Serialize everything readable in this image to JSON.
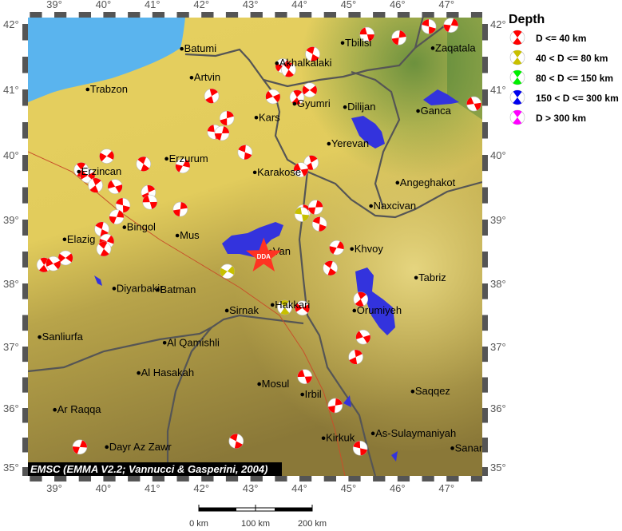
{
  "colors": {
    "sea": "#5ab4ee",
    "lake": "#3333dd",
    "terrain_high": "#e8d46a",
    "terrain_low": "#8f7d3a",
    "epicenter_star": "#ff3322"
  },
  "axes": {
    "lon_ticks": [
      "39°",
      "40°",
      "41°",
      "42°",
      "43°",
      "44°",
      "45°",
      "46°",
      "47°"
    ],
    "lat_ticks": [
      "42°",
      "41°",
      "40°",
      "39°",
      "38°",
      "37°",
      "36°",
      "35°"
    ]
  },
  "legend": {
    "title": "Depth",
    "items": [
      {
        "label": "D <= 40 km",
        "color": "#ff0000"
      },
      {
        "label": "40 < D <= 80 km",
        "color": "#c8c000"
      },
      {
        "label": "80 < D <= 150 km",
        "color": "#00ee00"
      },
      {
        "label": "150 < D <= 300 km",
        "color": "#0000ee"
      },
      {
        "label": "D > 300 km",
        "color": "#ff00ff"
      }
    ]
  },
  "epicenter": {
    "label": "DDA",
    "lon": 43.5,
    "lat": 38.45
  },
  "credit": "EMSC (EMMA V2.2; Vannucci & Gasperini, 2004)",
  "scale_bar": {
    "labels": [
      "0 km",
      "100 km",
      "200 km"
    ]
  },
  "cities": [
    {
      "name": "Batumi",
      "lon": 41.6,
      "lat": 41.62
    },
    {
      "name": "Artvin",
      "lon": 41.8,
      "lat": 41.18
    },
    {
      "name": "Trabzon",
      "lon": 39.68,
      "lat": 41.0
    },
    {
      "name": "Tbilisi",
      "lon": 44.88,
      "lat": 41.71
    },
    {
      "name": "Zaqatala",
      "lon": 46.72,
      "lat": 41.63
    },
    {
      "name": "Akhalkalaki",
      "lon": 43.54,
      "lat": 41.4
    },
    {
      "name": "Gyumri",
      "lon": 43.9,
      "lat": 40.78
    },
    {
      "name": "Dilijan",
      "lon": 44.93,
      "lat": 40.73
    },
    {
      "name": "Ganca",
      "lon": 46.42,
      "lat": 40.67
    },
    {
      "name": "Kars",
      "lon": 43.12,
      "lat": 40.57
    },
    {
      "name": "Yerevan",
      "lon": 44.6,
      "lat": 40.17
    },
    {
      "name": "Erzurum",
      "lon": 41.29,
      "lat": 39.94
    },
    {
      "name": "Karakose",
      "lon": 43.09,
      "lat": 39.73
    },
    {
      "name": "Erzincan",
      "lon": 39.5,
      "lat": 39.74
    },
    {
      "name": "Angeghakot",
      "lon": 46.0,
      "lat": 39.57
    },
    {
      "name": "Naxcivan",
      "lon": 45.46,
      "lat": 39.21
    },
    {
      "name": "Bingol",
      "lon": 40.43,
      "lat": 38.88
    },
    {
      "name": "Mus",
      "lon": 41.51,
      "lat": 38.75
    },
    {
      "name": "Elazig",
      "lon": 39.21,
      "lat": 38.69
    },
    {
      "name": "Van",
      "lon": 43.41,
      "lat": 38.5
    },
    {
      "name": "Khvoy",
      "lon": 45.07,
      "lat": 38.54
    },
    {
      "name": "Tabriz",
      "lon": 46.38,
      "lat": 38.09
    },
    {
      "name": "Diyarbakir",
      "lon": 40.22,
      "lat": 37.92
    },
    {
      "name": "Batman",
      "lon": 41.11,
      "lat": 37.9
    },
    {
      "name": "Sirnak",
      "lon": 42.52,
      "lat": 37.57
    },
    {
      "name": "Hakkari",
      "lon": 43.45,
      "lat": 37.66
    },
    {
      "name": "Orumiyeh",
      "lon": 45.12,
      "lat": 37.57
    },
    {
      "name": "Sanliurfa",
      "lon": 38.7,
      "lat": 37.15
    },
    {
      "name": "Al Qamishli",
      "lon": 41.25,
      "lat": 37.06
    },
    {
      "name": "Al Hasakah",
      "lon": 40.72,
      "lat": 36.57
    },
    {
      "name": "Mosul",
      "lon": 43.18,
      "lat": 36.39
    },
    {
      "name": "Irbil",
      "lon": 44.06,
      "lat": 36.22
    },
    {
      "name": "Saqqez",
      "lon": 46.31,
      "lat": 36.27
    },
    {
      "name": "Ar Raqqa",
      "lon": 39.01,
      "lat": 35.97
    },
    {
      "name": "As-Sulaymaniyah",
      "lon": 45.5,
      "lat": 35.57
    },
    {
      "name": "Kirkuk",
      "lon": 44.49,
      "lat": 35.49
    },
    {
      "name": "Dayr Az Zawr",
      "lon": 40.07,
      "lat": 35.34
    },
    {
      "name": "Sanandaj",
      "lon": 47.12,
      "lat": 35.32
    }
  ],
  "events": [
    {
      "lon": 45.38,
      "lat": 41.84,
      "depth": 1
    },
    {
      "lon": 46.03,
      "lat": 41.79,
      "depth": 1
    },
    {
      "lon": 46.64,
      "lat": 41.96,
      "depth": 1
    },
    {
      "lon": 47.09,
      "lat": 41.98,
      "depth": 1
    },
    {
      "lon": 44.27,
      "lat": 41.54,
      "depth": 1
    },
    {
      "lon": 43.66,
      "lat": 41.36,
      "depth": 1
    },
    {
      "lon": 43.78,
      "lat": 41.3,
      "depth": 1
    },
    {
      "lon": 44.21,
      "lat": 40.99,
      "depth": 1
    },
    {
      "lon": 43.95,
      "lat": 40.88,
      "depth": 1
    },
    {
      "lon": 43.46,
      "lat": 40.89,
      "depth": 1
    },
    {
      "lon": 42.21,
      "lat": 40.9,
      "depth": 1
    },
    {
      "lon": 47.56,
      "lat": 40.78,
      "depth": 1
    },
    {
      "lon": 42.52,
      "lat": 40.56,
      "depth": 1
    },
    {
      "lon": 42.27,
      "lat": 40.35,
      "depth": 1
    },
    {
      "lon": 42.42,
      "lat": 40.33,
      "depth": 1
    },
    {
      "lon": 42.89,
      "lat": 40.04,
      "depth": 1
    },
    {
      "lon": 41.62,
      "lat": 39.83,
      "depth": 1
    },
    {
      "lon": 40.82,
      "lat": 39.86,
      "depth": 1
    },
    {
      "lon": 40.07,
      "lat": 39.98,
      "depth": 1
    },
    {
      "lon": 39.55,
      "lat": 39.77,
      "depth": 1
    },
    {
      "lon": 39.68,
      "lat": 39.68,
      "depth": 1
    },
    {
      "lon": 39.84,
      "lat": 39.53,
      "depth": 1
    },
    {
      "lon": 40.24,
      "lat": 39.51,
      "depth": 1
    },
    {
      "lon": 40.92,
      "lat": 39.42,
      "depth": 1
    },
    {
      "lon": 40.95,
      "lat": 39.27,
      "depth": 1
    },
    {
      "lon": 41.57,
      "lat": 39.16,
      "depth": 1
    },
    {
      "lon": 40.4,
      "lat": 39.22,
      "depth": 1
    },
    {
      "lon": 40.27,
      "lat": 39.04,
      "depth": 1
    },
    {
      "lon": 39.97,
      "lat": 38.85,
      "depth": 1
    },
    {
      "lon": 40.07,
      "lat": 38.66,
      "depth": 1
    },
    {
      "lon": 40.01,
      "lat": 38.54,
      "depth": 1
    },
    {
      "lon": 39.23,
      "lat": 38.4,
      "depth": 1
    },
    {
      "lon": 38.79,
      "lat": 38.29,
      "depth": 1
    },
    {
      "lon": 38.98,
      "lat": 38.31,
      "depth": 1
    },
    {
      "lon": 44.24,
      "lat": 39.88,
      "depth": 1
    },
    {
      "lon": 44.03,
      "lat": 39.77,
      "depth": 1
    },
    {
      "lon": 44.08,
      "lat": 39.12,
      "depth": 1
    },
    {
      "lon": 44.05,
      "lat": 39.08,
      "depth": 2
    },
    {
      "lon": 44.33,
      "lat": 39.19,
      "depth": 1
    },
    {
      "lon": 44.41,
      "lat": 38.93,
      "depth": 1
    },
    {
      "lon": 44.76,
      "lat": 38.56,
      "depth": 1
    },
    {
      "lon": 44.63,
      "lat": 38.24,
      "depth": 1
    },
    {
      "lon": 42.53,
      "lat": 38.19,
      "depth": 2
    },
    {
      "lon": 43.7,
      "lat": 37.62,
      "depth": 2
    },
    {
      "lon": 44.06,
      "lat": 37.61,
      "depth": 1
    },
    {
      "lon": 45.25,
      "lat": 37.75,
      "depth": 1
    },
    {
      "lon": 45.3,
      "lat": 37.15,
      "depth": 1
    },
    {
      "lon": 45.15,
      "lat": 36.83,
      "depth": 1
    },
    {
      "lon": 44.11,
      "lat": 36.51,
      "depth": 1
    },
    {
      "lon": 44.73,
      "lat": 36.04,
      "depth": 1
    },
    {
      "lon": 45.24,
      "lat": 35.32,
      "depth": 1
    },
    {
      "lon": 39.52,
      "lat": 35.34,
      "depth": 1
    },
    {
      "lon": 42.71,
      "lat": 35.44,
      "depth": 1
    }
  ]
}
